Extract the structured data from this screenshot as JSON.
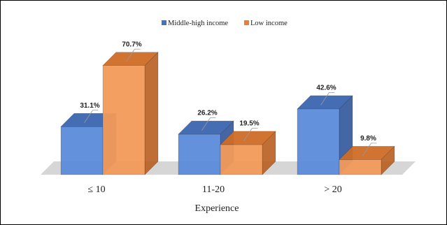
{
  "chart_data": {
    "type": "bar",
    "title": "",
    "xlabel": "Experience",
    "ylabel": "",
    "categories": [
      "≤ 10",
      "11-20",
      "> 20"
    ],
    "series": [
      {
        "name": "Middle-high income",
        "color": "#4472C4",
        "values": [
          31.1,
          26.2,
          42.6
        ],
        "labels": [
          "31.1%",
          "26.2%",
          "42.6%"
        ]
      },
      {
        "name": "Low income",
        "color": "#ED7D31",
        "values": [
          70.7,
          19.5,
          9.8
        ],
        "labels": [
          "70.7%",
          "19.5%",
          "9.8%"
        ]
      }
    ],
    "ylim": [
      0,
      80
    ],
    "legend_position": "top-center",
    "grid": false,
    "style": "3d-column"
  }
}
